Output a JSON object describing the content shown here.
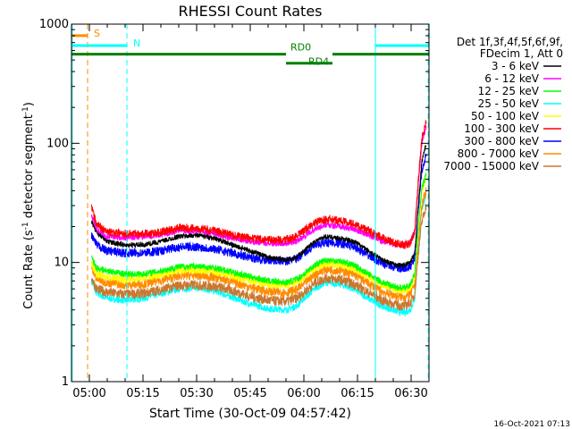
{
  "chart_data": {
    "type": "line",
    "title": "RHESSI Count Rates",
    "xlabel": "Start Time (30-Oct-09 04:57:42)",
    "ylabel_main": "Count Rate (s",
    "ylabel_sup1": "-1",
    "ylabel_mid": " detector segment",
    "ylabel_sup2": "-1",
    "ylabel_end": ")",
    "yscale": "log",
    "ylim": [
      1,
      1000
    ],
    "xlim_minutes": [
      295,
      395
    ],
    "x_ticks": [
      {
        "t": 300,
        "label": "05:00"
      },
      {
        "t": 315,
        "label": "05:15"
      },
      {
        "t": 330,
        "label": "05:30"
      },
      {
        "t": 345,
        "label": "05:45"
      },
      {
        "t": 360,
        "label": "06:00"
      },
      {
        "t": 375,
        "label": "06:15"
      },
      {
        "t": 390,
        "label": "06:30"
      }
    ],
    "y_ticks": [
      {
        "v": 1,
        "label": "1"
      },
      {
        "v": 10,
        "label": "10"
      },
      {
        "v": 100,
        "label": "100"
      },
      {
        "v": 1000,
        "label": "1000"
      }
    ],
    "legend_header": [
      "Det 1f,3f,4f,5f,6f,9f,",
      "FDecim 1, Att 0"
    ],
    "legend_placement": "right",
    "footer_date": "16-Oct-2021 07:13",
    "series": [
      {
        "name": "3 - 6 keV",
        "color": "#000000",
        "t": [
          300.6,
          302,
          305,
          310,
          315,
          320,
          325,
          330,
          335,
          340,
          345,
          350,
          355,
          358,
          360,
          363,
          366,
          370,
          374,
          378,
          382,
          386,
          388,
          389.8,
          391,
          392,
          393,
          394.2
        ],
        "v": [
          22,
          18,
          15,
          14,
          14,
          15,
          16.5,
          17,
          16,
          14,
          12.5,
          11,
          10.5,
          11,
          12.5,
          15,
          16.5,
          16,
          15,
          12.5,
          10.5,
          9.5,
          9.5,
          10,
          12,
          30,
          70,
          100
        ]
      },
      {
        "name": "6 - 12 keV",
        "color": "#ff00ff",
        "t": [
          300.6,
          302,
          305,
          310,
          315,
          320,
          325,
          330,
          335,
          340,
          345,
          350,
          355,
          358,
          360,
          363,
          366,
          370,
          374,
          378,
          382,
          386,
          388,
          389.8,
          391,
          392,
          393,
          394.2
        ],
        "v": [
          25,
          19,
          16.5,
          16,
          16.5,
          17,
          18.5,
          18.5,
          17.5,
          16,
          15,
          14.5,
          14.5,
          15,
          16.5,
          19,
          20.5,
          20,
          19,
          17,
          15,
          14,
          14,
          15,
          18,
          45,
          100,
          140
        ]
      },
      {
        "name": "12 - 25 keV",
        "color": "#00ff00",
        "t": [
          300.6,
          302,
          305,
          310,
          315,
          320,
          325,
          330,
          335,
          340,
          345,
          350,
          355,
          358,
          360,
          363,
          366,
          370,
          374,
          378,
          382,
          386,
          388,
          389.8,
          391,
          392,
          393,
          394.2
        ],
        "v": [
          11,
          9,
          8.5,
          8,
          8,
          8.5,
          9.2,
          9.3,
          9,
          8.3,
          7.6,
          7,
          6.8,
          7.2,
          8,
          9.5,
          10.5,
          10.3,
          9.5,
          8,
          6.8,
          6.2,
          6.1,
          6.5,
          8,
          20,
          42,
          55
        ]
      },
      {
        "name": "25 - 50 keV",
        "color": "#00ffff",
        "t": [
          300.6,
          302,
          305,
          310,
          315,
          320,
          325,
          330,
          335,
          340,
          345,
          350,
          355,
          358,
          360,
          363,
          366,
          370,
          374,
          378,
          382,
          386,
          388,
          389.8,
          391,
          392,
          393,
          394.2
        ],
        "v": [
          7,
          5.5,
          5,
          4.8,
          5,
          5.5,
          6,
          6.1,
          5.8,
          5.1,
          4.5,
          4.1,
          4,
          4.3,
          5,
          6,
          6.8,
          6.6,
          6,
          5,
          4.3,
          3.9,
          3.8,
          4,
          5,
          13,
          28,
          38
        ]
      },
      {
        "name": "50 - 100 keV",
        "color": "#ffff00",
        "t": [
          300.6,
          302,
          305,
          310,
          315,
          320,
          325,
          330,
          335,
          340,
          345,
          350,
          355,
          358,
          360,
          363,
          366,
          370,
          374,
          378,
          382,
          386,
          388,
          389.8,
          391,
          392,
          393,
          394.2
        ],
        "v": [
          10,
          8,
          7.5,
          7.2,
          7.4,
          7.9,
          8.5,
          8.7,
          8.4,
          7.7,
          7,
          6.5,
          6.4,
          6.8,
          7.5,
          8.9,
          9.8,
          9.6,
          8.9,
          7.6,
          6.5,
          5.9,
          5.8,
          6.1,
          7.5,
          18,
          40,
          52
        ]
      },
      {
        "name": "100 - 300 keV",
        "color": "#ff0000",
        "t": [
          300.6,
          302,
          305,
          310,
          315,
          320,
          325,
          330,
          335,
          340,
          345,
          350,
          355,
          358,
          360,
          363,
          366,
          370,
          374,
          378,
          382,
          386,
          388,
          389.8,
          391,
          392,
          393,
          394.2
        ],
        "v": [
          29,
          21,
          18,
          17.5,
          17.5,
          18,
          19.5,
          19.5,
          18.5,
          17,
          16,
          15.5,
          15.5,
          16.5,
          18.5,
          21.5,
          23,
          22.5,
          21,
          18.5,
          16,
          14.5,
          14,
          14.5,
          18,
          48,
          110,
          150
        ]
      },
      {
        "name": "300 - 800 keV",
        "color": "#0000ff",
        "t": [
          300.6,
          302,
          305,
          310,
          315,
          320,
          325,
          330,
          335,
          340,
          345,
          350,
          355,
          358,
          360,
          363,
          366,
          370,
          374,
          378,
          382,
          386,
          388,
          389.8,
          391,
          392,
          393,
          394.2
        ],
        "v": [
          17,
          14,
          12.5,
          12,
          12,
          12.5,
          13.5,
          13.5,
          13,
          12,
          11,
          10.5,
          10.2,
          10.8,
          12,
          13.8,
          14.8,
          14.5,
          13.5,
          11.5,
          9.8,
          9,
          8.8,
          9.2,
          11,
          28,
          60,
          80
        ]
      },
      {
        "name": "800 - 7000 keV",
        "color": "#ff8c00",
        "t": [
          300.6,
          302,
          305,
          310,
          315,
          320,
          325,
          330,
          335,
          340,
          345,
          350,
          355,
          358,
          360,
          363,
          366,
          370,
          374,
          378,
          382,
          386,
          388,
          389.8,
          391,
          392,
          393,
          394.2
        ],
        "v": [
          9,
          7.3,
          6.8,
          6.5,
          6.6,
          7.1,
          7.7,
          7.8,
          7.5,
          6.9,
          6.2,
          5.7,
          5.6,
          5.9,
          6.6,
          7.9,
          8.8,
          8.6,
          7.9,
          6.7,
          5.7,
          5.2,
          5.1,
          5.4,
          6.5,
          15,
          30,
          40
        ]
      },
      {
        "name": "7000 - 15000 keV",
        "color": "#c87830",
        "t": [
          300.6,
          302,
          305,
          310,
          315,
          320,
          325,
          330,
          335,
          340,
          345,
          350,
          355,
          358,
          360,
          363,
          366,
          370,
          374,
          378,
          382,
          386,
          388,
          389.8,
          391,
          392,
          393,
          394.2
        ],
        "v": [
          7.5,
          6,
          5.6,
          5.4,
          5.5,
          5.9,
          6.4,
          6.5,
          6.3,
          5.8,
          5.2,
          4.8,
          4.7,
          5,
          5.6,
          6.7,
          7.4,
          7.2,
          6.6,
          5.6,
          4.8,
          4.4,
          4.3,
          4.6,
          5.5,
          12,
          22,
          30
        ]
      }
    ],
    "attenuator_states": [
      {
        "label": "S",
        "color": "#ff8c00",
        "t0": 295,
        "t1": 299.5,
        "v": 800
      },
      {
        "label": "N",
        "color": "#00ffff",
        "t0": 295,
        "t1": 310.5,
        "v": 660
      },
      {
        "label": "",
        "color": "#00ffff",
        "t0": 380,
        "t1": 395,
        "v": 660
      }
    ],
    "decimation_states": [
      {
        "label": "RD0",
        "t0": 295,
        "t1": 355,
        "v": 560
      },
      {
        "label": "RD4",
        "t0": 355,
        "t1": 368,
        "v": 470
      },
      {
        "label": "",
        "t0": 368,
        "t1": 395,
        "v": 560
      }
    ],
    "vertical_markers": [
      {
        "t": 295.2,
        "color": "#00ffff",
        "style": "solid"
      },
      {
        "t": 299.5,
        "color": "#ff8c00",
        "style": "dashed"
      },
      {
        "t": 310.5,
        "color": "#00ffff",
        "style": "dashed"
      },
      {
        "t": 380,
        "color": "#00ffff",
        "style": "solid"
      },
      {
        "t": 394.8,
        "color": "#00ffff",
        "style": "dashed"
      }
    ]
  }
}
